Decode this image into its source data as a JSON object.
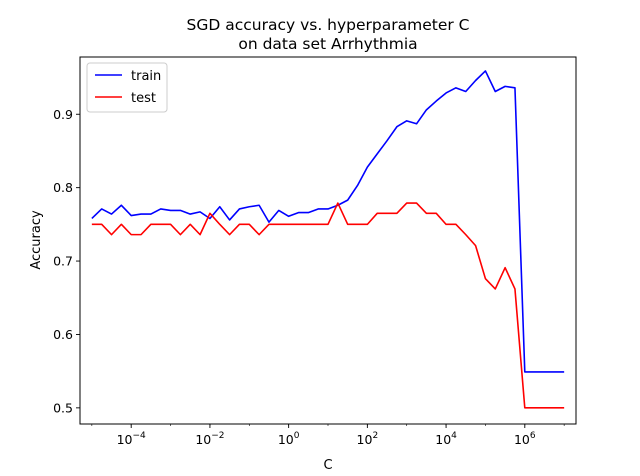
{
  "chart_data": {
    "type": "line",
    "title": [
      "SGD accuracy vs. hyperparameter C",
      "on data set Arrhythmia"
    ],
    "xlabel": "C",
    "ylabel": "Accuracy",
    "xscale": "log",
    "xlim": [
      5e-06,
      20000000.0
    ],
    "ylim": [
      0.478,
      0.978
    ],
    "xticks": [
      {
        "value": 0.0001,
        "base": "10",
        "exp": "−4"
      },
      {
        "value": 0.01,
        "base": "10",
        "exp": "−2"
      },
      {
        "value": 1,
        "base": "10",
        "exp": "0"
      },
      {
        "value": 100.0,
        "base": "10",
        "exp": "2"
      },
      {
        "value": 10000.0,
        "base": "10",
        "exp": "4"
      },
      {
        "value": 1000000.0,
        "base": "10",
        "exp": "6"
      }
    ],
    "yticks": [
      0.5,
      0.6,
      0.7,
      0.8,
      0.9
    ],
    "ytick_labels": [
      "0.5",
      "0.6",
      "0.7",
      "0.8",
      "0.9"
    ],
    "grid": false,
    "legend_position": "top-left",
    "x": [
      1e-05,
      1.778e-05,
      3.162e-05,
      5.623e-05,
      0.0001,
      0.0001778,
      0.0003162,
      0.0005623,
      0.001,
      0.001778,
      0.003162,
      0.005623,
      0.01,
      0.01778,
      0.03162,
      0.05623,
      0.1,
      0.1778,
      0.3162,
      0.5623,
      1,
      1.778,
      3.162,
      5.623,
      10,
      17.78,
      31.62,
      56.23,
      100,
      177.8,
      316.2,
      562.3,
      1000,
      1778,
      3162,
      5623,
      10000,
      17780,
      31620,
      56230,
      100000,
      177800,
      316200,
      562300,
      1000000,
      1778000,
      3162000,
      5623000,
      10000000
    ],
    "series": [
      {
        "name": "train",
        "color": "#0000ff",
        "values": [
          0.758,
          0.771,
          0.764,
          0.776,
          0.762,
          0.764,
          0.764,
          0.771,
          0.769,
          0.769,
          0.764,
          0.767,
          0.758,
          0.774,
          0.756,
          0.771,
          0.774,
          0.776,
          0.753,
          0.769,
          0.761,
          0.766,
          0.766,
          0.771,
          0.771,
          0.776,
          0.783,
          0.803,
          0.828,
          0.846,
          0.864,
          0.883,
          0.891,
          0.887,
          0.906,
          0.918,
          0.929,
          0.936,
          0.931,
          0.946,
          0.959,
          0.931,
          0.938,
          0.936,
          0.549,
          0.549,
          0.549,
          0.549,
          0.549
        ]
      },
      {
        "name": "test",
        "color": "#ff0000",
        "values": [
          0.75,
          0.75,
          0.736,
          0.75,
          0.736,
          0.736,
          0.75,
          0.75,
          0.75,
          0.736,
          0.75,
          0.736,
          0.765,
          0.75,
          0.736,
          0.75,
          0.75,
          0.736,
          0.75,
          0.75,
          0.75,
          0.75,
          0.75,
          0.75,
          0.75,
          0.779,
          0.75,
          0.75,
          0.75,
          0.765,
          0.765,
          0.765,
          0.779,
          0.779,
          0.765,
          0.765,
          0.75,
          0.75,
          0.736,
          0.721,
          0.676,
          0.662,
          0.691,
          0.662,
          0.5,
          0.5,
          0.5,
          0.5,
          0.5
        ]
      }
    ]
  }
}
